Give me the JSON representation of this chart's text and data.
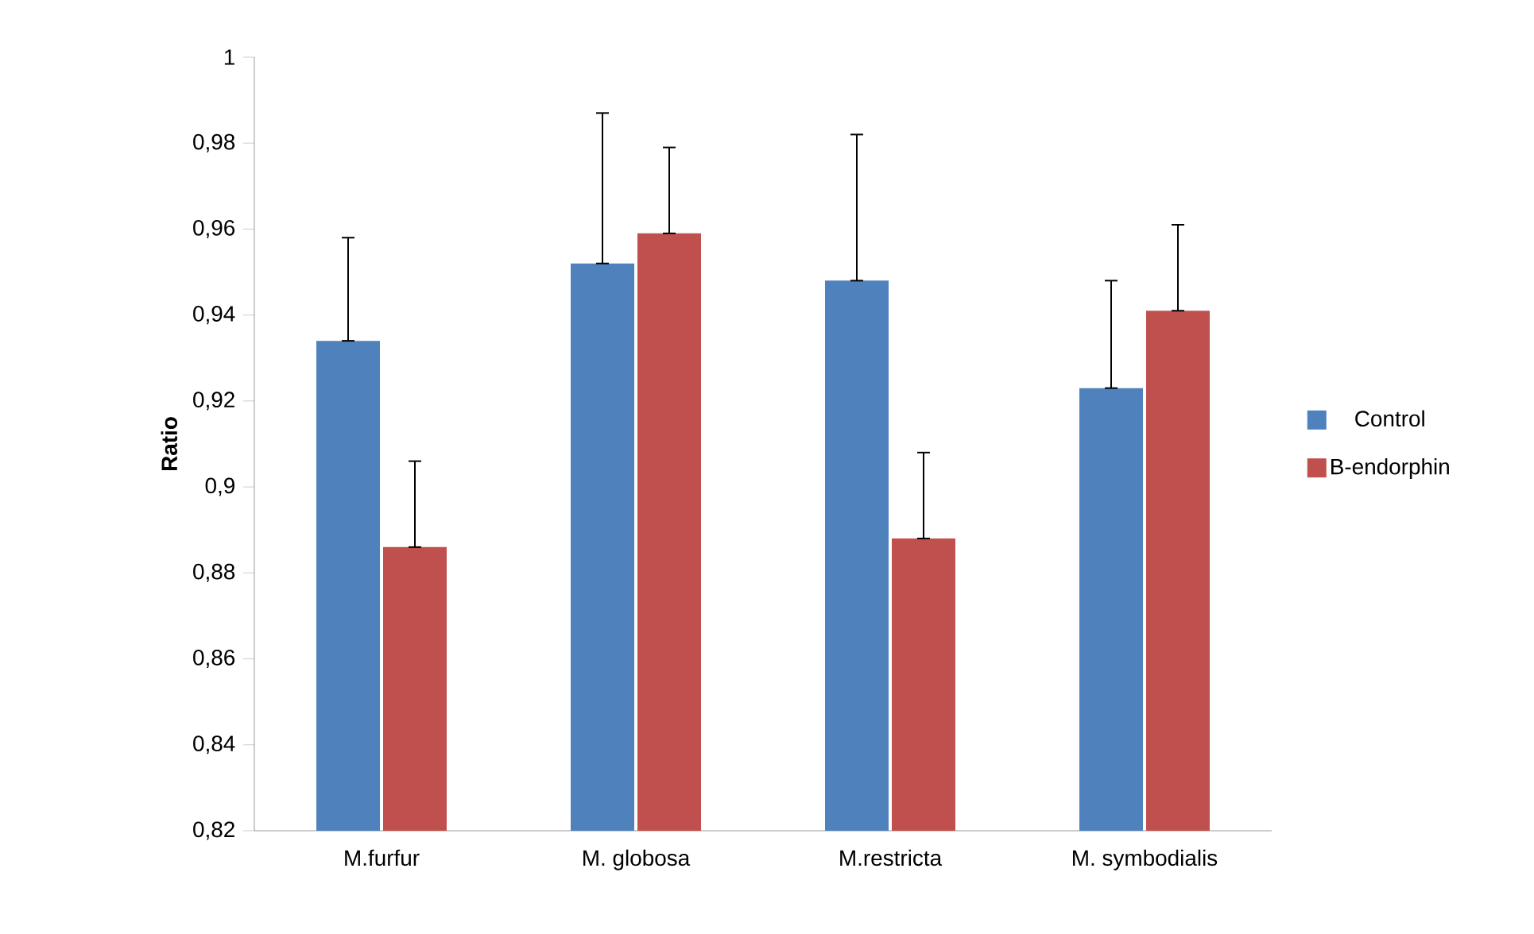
{
  "chart_data": {
    "type": "bar",
    "ylabel": "Ratio",
    "categories": [
      "M.furfur",
      "M. globosa",
      "M.restricta",
      "M. symbodialis"
    ],
    "series": [
      {
        "name": "Control",
        "color": "#4f81bd",
        "values": [
          0.934,
          0.952,
          0.948,
          0.923
        ],
        "errors": [
          [
            0.934,
            0.958
          ],
          [
            0.952,
            0.987
          ],
          [
            0.948,
            0.982
          ],
          [
            0.923,
            0.948
          ]
        ]
      },
      {
        "name": "B-endorphin",
        "color": "#c0504d",
        "values": [
          0.886,
          0.959,
          0.888,
          0.941
        ],
        "errors": [
          [
            0.886,
            0.906
          ],
          [
            0.959,
            0.979
          ],
          [
            0.888,
            0.908
          ],
          [
            0.941,
            0.961
          ]
        ]
      }
    ],
    "ylim": [
      0.82,
      1
    ],
    "yticks": [
      {
        "value": 0.82,
        "label": "0,82"
      },
      {
        "value": 0.84,
        "label": "0,84"
      },
      {
        "value": 0.86,
        "label": "0,86"
      },
      {
        "value": 0.88,
        "label": "0,88"
      },
      {
        "value": 0.9,
        "label": "0,9"
      },
      {
        "value": 0.92,
        "label": "0,92"
      },
      {
        "value": 0.94,
        "label": "0,94"
      },
      {
        "value": 0.96,
        "label": "0,96"
      },
      {
        "value": 0.98,
        "label": "0,98"
      },
      {
        "value": 1,
        "label": "1"
      }
    ],
    "grid": false,
    "legend": "right"
  }
}
